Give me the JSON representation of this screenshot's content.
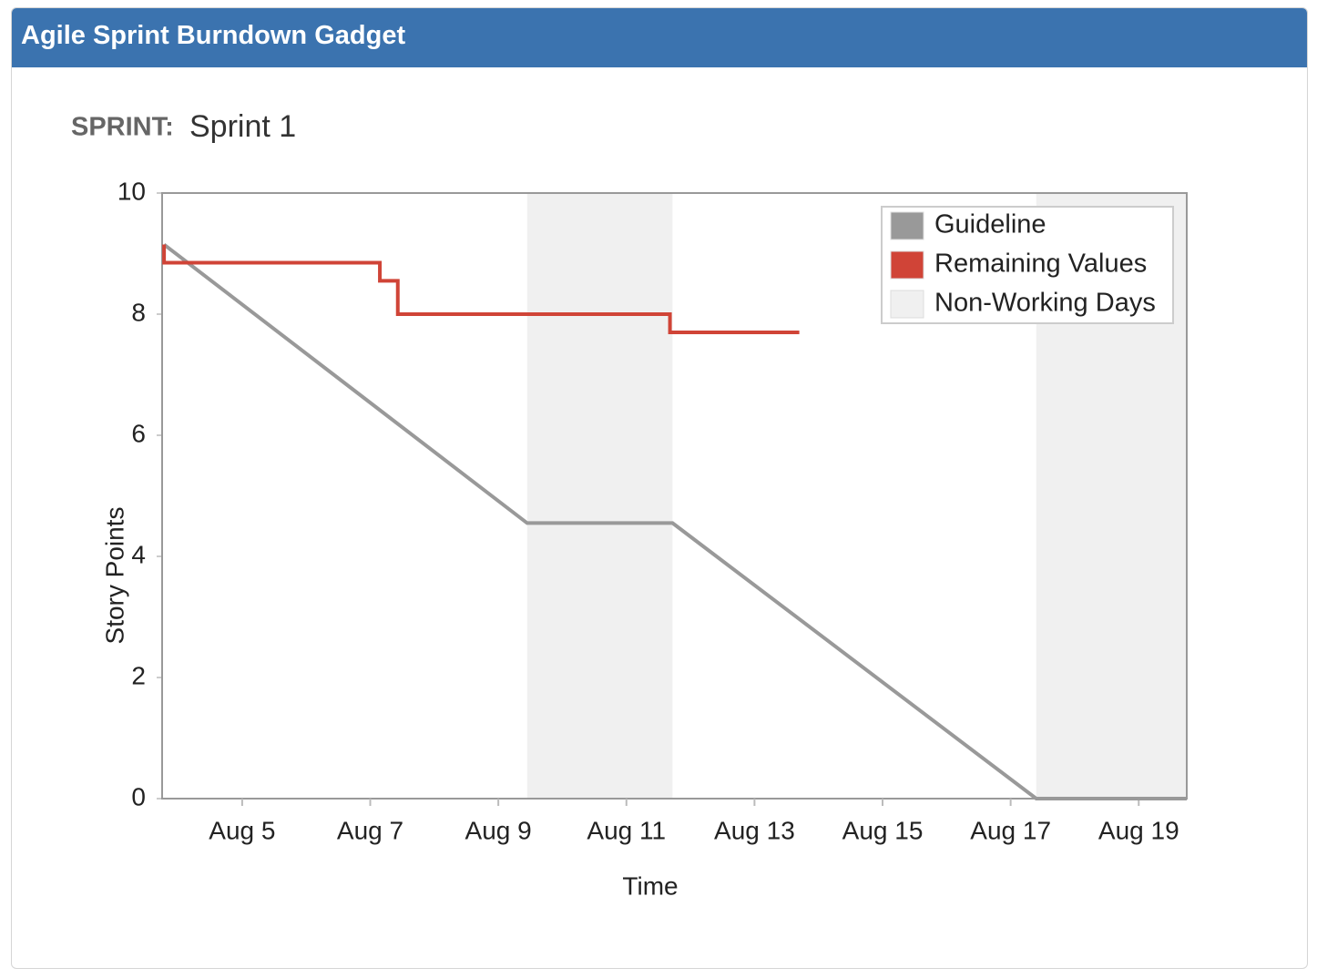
{
  "header": {
    "title": "Agile Sprint Burndown Gadget"
  },
  "sprint": {
    "label": "SPRINT:",
    "name": "Sprint 1"
  },
  "chart_data": {
    "type": "line",
    "x_label": "Time",
    "y_label": "Story Points",
    "xlim": [
      3.75,
      19.75
    ],
    "xticks": [
      {
        "value": 5,
        "label": "Aug 5"
      },
      {
        "value": 7,
        "label": "Aug 7"
      },
      {
        "value": 9,
        "label": "Aug 9"
      },
      {
        "value": 11,
        "label": "Aug 11"
      },
      {
        "value": 13,
        "label": "Aug 13"
      },
      {
        "value": 15,
        "label": "Aug 15"
      },
      {
        "value": 17,
        "label": "Aug 17"
      },
      {
        "value": 19,
        "label": "Aug 19"
      }
    ],
    "ylim": [
      0,
      10
    ],
    "yticks": [
      0,
      2,
      4,
      6,
      8,
      10
    ],
    "legend": "upper right",
    "series": [
      {
        "name": "Guideline",
        "color": "#999999",
        "x": [
          3.78,
          9.45,
          11.72,
          17.4,
          19.75
        ],
        "values": [
          9.15,
          4.55,
          4.55,
          0,
          0
        ]
      },
      {
        "name": "Remaining Values",
        "color": "#d04437",
        "x": [
          3.78,
          3.78,
          7.15,
          7.15,
          7.43,
          7.43,
          11.68,
          11.68,
          13.7
        ],
        "values": [
          9.15,
          8.85,
          8.85,
          8.55,
          8.55,
          8.0,
          8.0,
          7.7,
          7.7
        ]
      }
    ],
    "bands": {
      "name": "Non-Working Days",
      "color": "#f0f0f0",
      "ranges": [
        [
          9.45,
          11.72
        ],
        [
          17.4,
          19.75
        ]
      ]
    }
  }
}
